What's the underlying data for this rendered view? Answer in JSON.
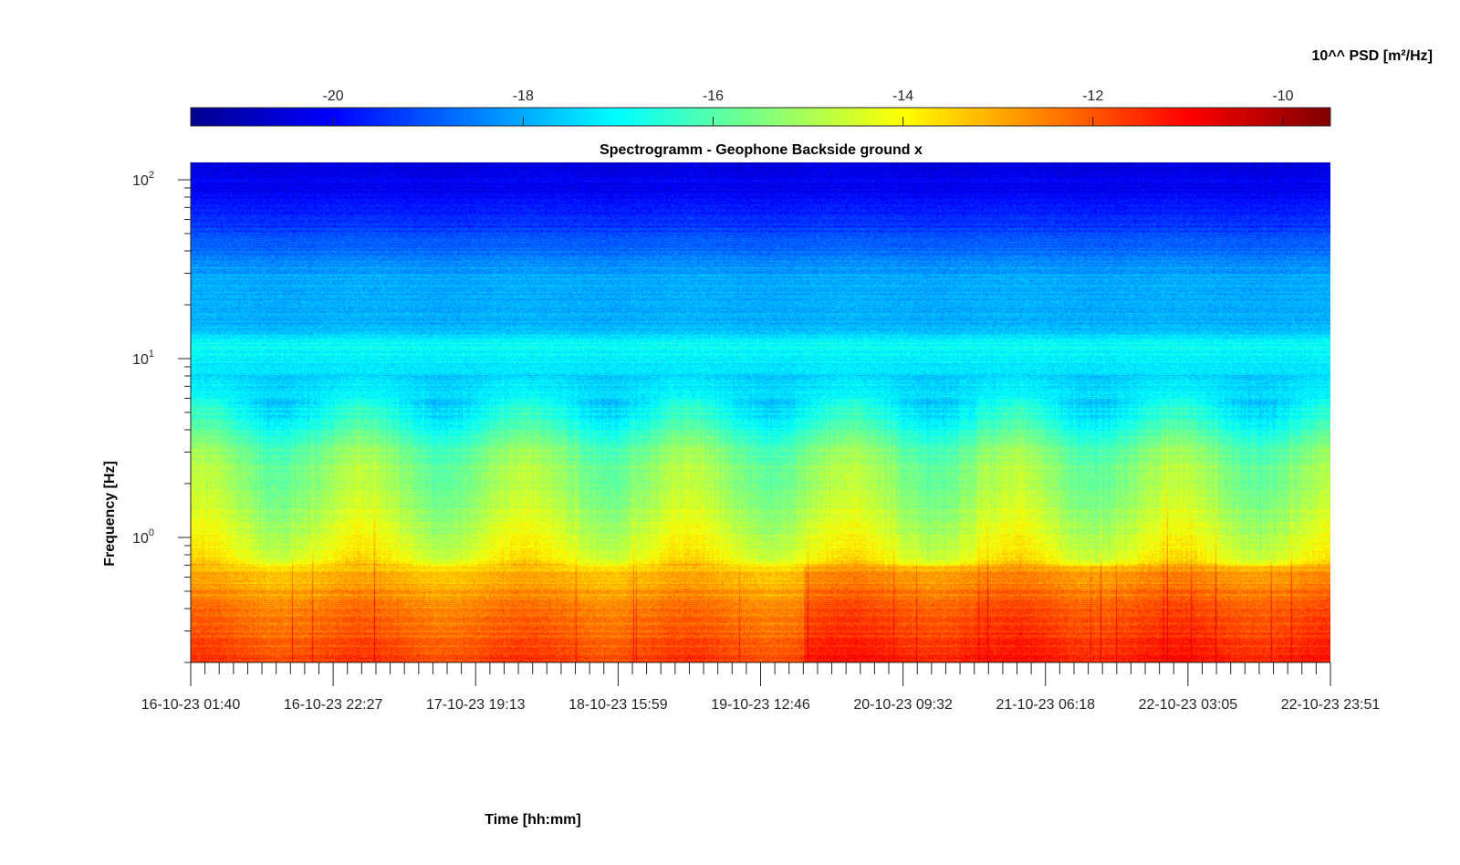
{
  "chart_data": {
    "type": "heatmap",
    "title": "Spectrogramm - Geophone Backside ground x",
    "xlabel": "Time [hh:mm]",
    "ylabel": "Frequency [Hz]",
    "y_scale": "log",
    "ylim": [
      0.2,
      125
    ],
    "x_tick_labels": [
      "16-10-23 01:40",
      "16-10-23 22:27",
      "17-10-23 19:13",
      "18-10-23 15:59",
      "19-10-23 12:46",
      "20-10-23 09:32",
      "21-10-23 06:18",
      "22-10-23 03:05",
      "22-10-23 23:51"
    ],
    "y_ticks": [
      {
        "base": "10",
        "exp": "2",
        "value": 100
      },
      {
        "base": "10",
        "exp": "1",
        "value": 10
      },
      {
        "base": "10",
        "exp": "0",
        "value": 1
      }
    ],
    "colorbar": {
      "label": "10^^ PSD [m²/Hz]",
      "range": [
        -21.5,
        -9.5
      ],
      "tick_labels": [
        "-20",
        "-18",
        "-16",
        "-14",
        "-12",
        "-10"
      ],
      "tick_values": [
        -20,
        -18,
        -16,
        -14,
        -12,
        -10
      ],
      "colormap": "jet"
    },
    "spectral_profile": [
      {
        "freq_hz": 120,
        "log_psd": -20.4
      },
      {
        "freq_hz": 80,
        "log_psd": -20.0
      },
      {
        "freq_hz": 50,
        "log_psd": -19.2
      },
      {
        "freq_hz": 30,
        "log_psd": -18.1
      },
      {
        "freq_hz": 15,
        "log_psd": -17.8
      },
      {
        "freq_hz": 12,
        "log_psd": -16.9
      },
      {
        "freq_hz": 8,
        "log_psd": -17.5
      },
      {
        "freq_hz": 5,
        "log_psd": -16.9
      },
      {
        "freq_hz": 3,
        "log_psd": -15.6
      },
      {
        "freq_hz": 1.5,
        "log_psd": -15.0
      },
      {
        "freq_hz": 0.8,
        "log_psd": -14.2
      },
      {
        "freq_hz": 0.65,
        "log_psd": -13.3
      },
      {
        "freq_hz": 0.4,
        "log_psd": -12.4
      },
      {
        "freq_hz": 0.2,
        "log_psd": -11.8
      }
    ],
    "notable_features": [
      {
        "type": "narrow_band",
        "freq_hz": 12
      },
      {
        "type": "regime_change",
        "time": "19-10-23 12:46",
        "description": "stronger low-frequency energy after"
      }
    ]
  }
}
